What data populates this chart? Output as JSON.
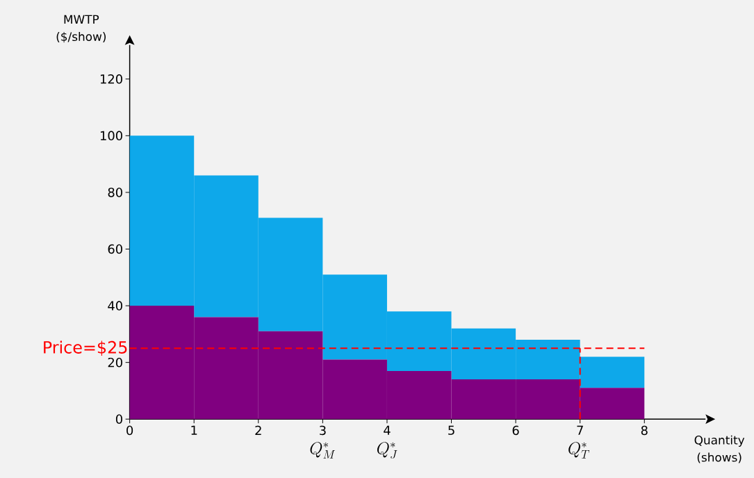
{
  "chart_data": {
    "type": "bar",
    "stacked": true,
    "xlabel": "Quantity (shows)",
    "ylabel": "MWTP ($/show)",
    "x": [
      0.5,
      1.5,
      2.5,
      3.5,
      4.5,
      5.5,
      6.5,
      7.5
    ],
    "series": [
      {
        "color": "#800080",
        "values": [
          40,
          36,
          31,
          21,
          17,
          14,
          14,
          11
        ]
      },
      {
        "color": "#0ea8ea",
        "values": [
          60,
          50,
          40,
          30,
          21,
          18,
          14,
          11
        ]
      }
    ],
    "xlim": [
      0,
      8.95
    ],
    "ylim": [
      0,
      132
    ],
    "xticks": [
      0,
      1,
      2,
      3,
      4,
      5,
      6,
      7,
      8
    ],
    "yticks": [
      0,
      20,
      40,
      60,
      80,
      100,
      120
    ],
    "ref_lines": [
      {
        "axis": "y",
        "value": 25,
        "label": "Price=$25",
        "color": "#ff0000",
        "line_style": "dashed"
      },
      {
        "axis": "x",
        "value": 7,
        "color": "#ff0000",
        "line_style": "dashed"
      }
    ],
    "annotations": [
      "Q^*_M",
      "Q^*_J",
      "Q^*_T"
    ],
    "grid": false
  }
}
